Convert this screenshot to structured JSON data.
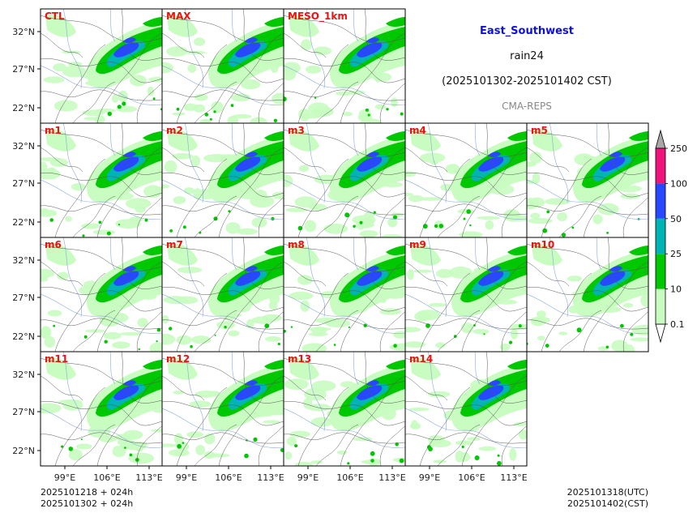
{
  "header": {
    "region": "East_Southwest",
    "variable": "rain24",
    "period": "(2025101302-2025101402 CST)",
    "source": "CMA-REPS"
  },
  "axes": {
    "lat_labels": [
      "32°N",
      "27°N",
      "22°N"
    ],
    "lon_labels": [
      "99°E",
      "106°E",
      "113°E"
    ]
  },
  "panels": [
    [
      "CTL",
      "MAX",
      "MESO_1km"
    ],
    [
      "m1",
      "m2",
      "m3",
      "m4",
      "m5"
    ],
    [
      "m6",
      "m7",
      "m8",
      "m9",
      "m10"
    ],
    [
      "m11",
      "m12",
      "m13",
      "m14"
    ]
  ],
  "colorbar": {
    "levels": [
      "0.1",
      "10",
      "25",
      "50",
      "100",
      "250"
    ],
    "colors": [
      "#c8fcc0",
      "#00c800",
      "#00b4b4",
      "#2848ff",
      "#f0147a"
    ],
    "under_color": "#ffffff",
    "over_color": "#a8a8a8"
  },
  "footer": {
    "left_line1": "2025101218  +  024h",
    "left_line2": "2025101302  +  024h",
    "right_line1": "2025101318(UTC)",
    "right_line2": "2025101402(CST)"
  },
  "colors": {
    "light_rain": "#c8fcc0",
    "moderate_rain": "#00c800",
    "heavy_rain": "#00b4b4",
    "rainstorm": "#2848ff",
    "extreme": "#f0147a",
    "panel_label": "#ee1111",
    "title": "#1010dd"
  }
}
